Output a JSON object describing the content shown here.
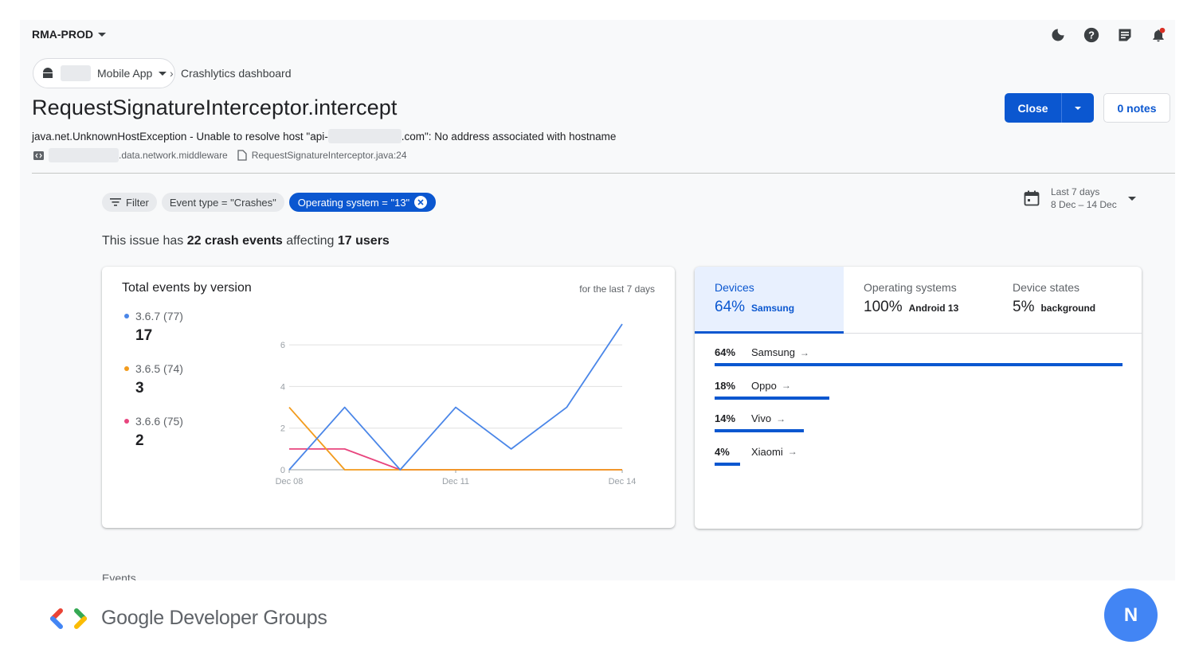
{
  "project": {
    "name": "RMA-PROD"
  },
  "breadcrumb": {
    "app_name": "Mobile App",
    "page": "Crashlytics dashboard",
    "separator": "›"
  },
  "issue": {
    "title": "RequestSignatureInterceptor.intercept",
    "exception_prefix": "java.net.UnknownHostException - Unable to resolve host \"api-",
    "exception_suffix": ".com\": No address associated with hostname",
    "package_suffix": ".data.network.middleware",
    "file": "RequestSignatureInterceptor.java:24"
  },
  "actions": {
    "close_label": "Close",
    "notes_label": "0 notes"
  },
  "filters": {
    "filter_label": "Filter",
    "event_type": "Event type = \"Crashes\"",
    "os": "Operating system = \"13\""
  },
  "date_range": {
    "label": "Last 7 days",
    "range": "8 Dec – 14 Dec"
  },
  "summary": {
    "prefix": "This issue has ",
    "events": "22 crash events",
    "middle": " affecting ",
    "users": "17 users"
  },
  "chart_card": {
    "title": "Total events by version",
    "subtitle": "for the last 7 days"
  },
  "legend": [
    {
      "name": "3.6.7 (77)",
      "value": "17",
      "color": "#4a86e8"
    },
    {
      "name": "3.6.5 (74)",
      "value": "3",
      "color": "#f29b1d"
    },
    {
      "name": "3.6.6 (75)",
      "value": "2",
      "color": "#e8457e"
    }
  ],
  "chart_data": {
    "type": "line",
    "x": [
      "Dec 08",
      "Dec 09",
      "Dec 10",
      "Dec 11",
      "Dec 12",
      "Dec 13",
      "Dec 14"
    ],
    "x_tick_labels": [
      "Dec 08",
      "Dec 11",
      "Dec 14"
    ],
    "y_ticks": [
      0,
      2,
      4,
      6
    ],
    "ylim": [
      0,
      7
    ],
    "grid": true,
    "series": [
      {
        "name": "3.6.7 (77)",
        "color": "#4a86e8",
        "values": [
          0,
          3,
          0,
          3,
          1,
          3,
          7
        ]
      },
      {
        "name": "3.6.5 (74)",
        "color": "#f29b1d",
        "values": [
          3,
          0,
          0,
          0,
          0,
          0,
          0
        ]
      },
      {
        "name": "3.6.6 (75)",
        "color": "#e8457e",
        "values": [
          1,
          1,
          0,
          0,
          0,
          0,
          0
        ]
      }
    ]
  },
  "tabs": [
    {
      "label": "Devices",
      "pct": "64%",
      "name": "Samsung"
    },
    {
      "label": "Operating systems",
      "pct": "100%",
      "name": "Android 13"
    },
    {
      "label": "Device states",
      "pct": "5%",
      "name": "background"
    }
  ],
  "devices": [
    {
      "pct": "64%",
      "name": "Samsung",
      "share": 0.64
    },
    {
      "pct": "18%",
      "name": "Oppo",
      "share": 0.18
    },
    {
      "pct": "14%",
      "name": "Vivo",
      "share": 0.14
    },
    {
      "pct": "4%",
      "name": "Xiaomi",
      "share": 0.04
    }
  ],
  "events_section": {
    "label": "Events"
  },
  "footer": {
    "brand": "Google Developer Groups",
    "avatar_initial": "N"
  }
}
